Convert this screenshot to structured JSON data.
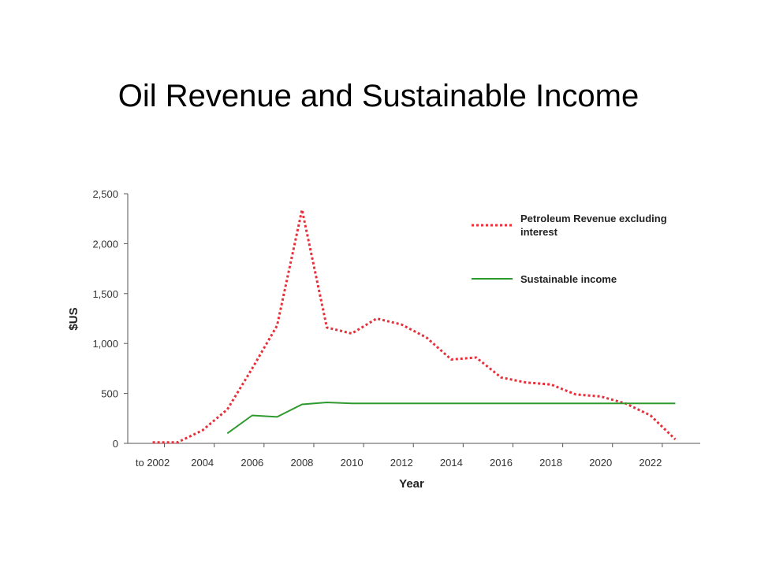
{
  "page": {
    "title": "Oil Revenue and Sustainable Income"
  },
  "chart_data": {
    "type": "line",
    "xlabel": "Year",
    "ylabel": "$US",
    "xlim": [
      2001,
      2024
    ],
    "ylim": [
      0,
      2500
    ],
    "yticks": [
      {
        "value": 0,
        "label": "0"
      },
      {
        "value": 500,
        "label": "500"
      },
      {
        "value": 1000,
        "label": "1,000"
      },
      {
        "value": 1500,
        "label": "1,500"
      },
      {
        "value": 2000,
        "label": "2,000"
      },
      {
        "value": 2500,
        "label": "2,500"
      }
    ],
    "xticks": [
      {
        "value": 2002,
        "label": "to 2002"
      },
      {
        "value": 2004,
        "label": "2004"
      },
      {
        "value": 2006,
        "label": "2006"
      },
      {
        "value": 2008,
        "label": "2008"
      },
      {
        "value": 2010,
        "label": "2010"
      },
      {
        "value": 2012,
        "label": "2012"
      },
      {
        "value": 2014,
        "label": "2014"
      },
      {
        "value": 2016,
        "label": "2016"
      },
      {
        "value": 2018,
        "label": "2018"
      },
      {
        "value": 2020,
        "label": "2020"
      },
      {
        "value": 2022,
        "label": "2022"
      }
    ],
    "grid": false,
    "legend_position": "top-right",
    "series": [
      {
        "name": "Petroleum Revenue excluding interest",
        "color": "#e8303a",
        "style": "dotted",
        "points": [
          [
            2002,
            10
          ],
          [
            2003,
            10
          ],
          [
            2004,
            130
          ],
          [
            2005,
            340
          ],
          [
            2006,
            750
          ],
          [
            2007,
            1180
          ],
          [
            2008,
            2340
          ],
          [
            2009,
            1160
          ],
          [
            2010,
            1100
          ],
          [
            2011,
            1250
          ],
          [
            2012,
            1190
          ],
          [
            2013,
            1060
          ],
          [
            2014,
            840
          ],
          [
            2015,
            860
          ],
          [
            2016,
            660
          ],
          [
            2017,
            610
          ],
          [
            2018,
            590
          ],
          [
            2019,
            490
          ],
          [
            2020,
            470
          ],
          [
            2021,
            400
          ],
          [
            2022,
            280
          ],
          [
            2023,
            40
          ]
        ]
      },
      {
        "name": "Sustainable income",
        "color": "#2e9a2e",
        "style": "solid",
        "points": [
          [
            2005,
            100
          ],
          [
            2006,
            280
          ],
          [
            2007,
            265
          ],
          [
            2008,
            390
          ],
          [
            2009,
            410
          ],
          [
            2010,
            400
          ],
          [
            2011,
            400
          ],
          [
            2012,
            400
          ],
          [
            2013,
            400
          ],
          [
            2014,
            400
          ],
          [
            2015,
            400
          ],
          [
            2016,
            400
          ],
          [
            2017,
            400
          ],
          [
            2018,
            400
          ],
          [
            2019,
            400
          ],
          [
            2020,
            400
          ],
          [
            2021,
            400
          ],
          [
            2022,
            400
          ],
          [
            2023,
            400
          ]
        ]
      }
    ],
    "legend": [
      {
        "label_lines": [
          "Petroleum Revenue excluding",
          "interest"
        ]
      },
      {
        "label_lines": [
          "Sustainable income"
        ]
      }
    ]
  }
}
